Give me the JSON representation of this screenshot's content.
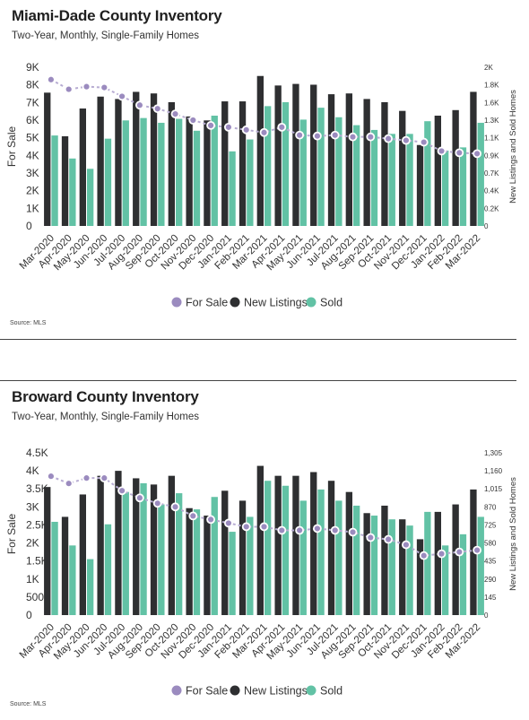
{
  "colors": {
    "for_sale": "#9b8bbf",
    "for_sale_line": "#b7acd2",
    "new_listings": "#2e2f31",
    "sold": "#62c2a5"
  },
  "chart_data": [
    {
      "type": "bar",
      "title": "Miami-Dade County Inventory",
      "subtitle": "Two-Year, Monthly, Single-Family Homes",
      "source": "Source:  MLS",
      "ylabel": "For Sale",
      "y2label": "New Listings and Sold Homes",
      "ylim": [
        0,
        9000
      ],
      "y2lim": [
        0,
        2000
      ],
      "yticks": [
        "0",
        "1K",
        "2K",
        "3K",
        "4K",
        "5K",
        "6K",
        "7K",
        "8K",
        "9K"
      ],
      "y2ticks": [
        "0",
        "0.2K",
        "0.4K",
        "0.7K",
        "0.9K",
        "1.1K",
        "1.3K",
        "1.6K",
        "1.8K",
        "2K"
      ],
      "categories": [
        "Mar-2020",
        "Apr-2020",
        "May-2020",
        "Jun-2020",
        "Jul-2020",
        "Aug-2020",
        "Sep-2020",
        "Oct-2020",
        "Nov-2020",
        "Dec-2020",
        "Jan-2021",
        "Feb-2021",
        "Mar-2021",
        "Apr-2021",
        "May-2021",
        "Jun-2021",
        "Jul-2021",
        "Aug-2021",
        "Sep-2021",
        "Oct-2021",
        "Nov-2021",
        "Dec-2021",
        "Jan-2022",
        "Feb-2022",
        "Mar-2022"
      ],
      "legend": [
        "For Sale",
        "New Listings",
        "Sold"
      ],
      "series": [
        {
          "name": "For Sale",
          "kind": "line",
          "axis": "left",
          "values": [
            8300,
            7750,
            7900,
            7850,
            7350,
            6850,
            6650,
            6350,
            6000,
            5700,
            5600,
            5450,
            5300,
            5600,
            5150,
            5100,
            5150,
            5050,
            5050,
            4950,
            4850,
            4750,
            4250,
            4150,
            4100
          ]
        },
        {
          "name": "New Listings",
          "kind": "bar",
          "axis": "right",
          "values": [
            1680,
            1130,
            1480,
            1630,
            1600,
            1690,
            1670,
            1560,
            1380,
            1330,
            1570,
            1570,
            1890,
            1770,
            1790,
            1780,
            1660,
            1670,
            1600,
            1560,
            1450,
            1020,
            1390,
            1460,
            1690
          ]
        },
        {
          "name": "Sold",
          "kind": "bar",
          "axis": "right",
          "values": [
            1140,
            850,
            720,
            1100,
            1330,
            1360,
            1300,
            1350,
            1200,
            1390,
            940,
            1090,
            1510,
            1560,
            1340,
            1490,
            1370,
            1270,
            1210,
            1160,
            1160,
            1320,
            950,
            990,
            1300
          ]
        }
      ]
    },
    {
      "type": "bar",
      "title": "Broward County Inventory",
      "subtitle": "Two-Year, Monthly, Single-Family Homes",
      "source": "Source:  MLS",
      "ylabel": "For Sale",
      "y2label": "New Listings and Sold Homes",
      "ylim": [
        0,
        4500
      ],
      "y2lim": [
        0,
        1305
      ],
      "yticks": [
        "0",
        "500",
        "1K",
        "1.5K",
        "2K",
        "2.5K",
        "3K",
        "3.5K",
        "4K",
        "4.5K"
      ],
      "y2ticks": [
        "0",
        "145",
        "290",
        "435",
        "580",
        "725",
        "870",
        "1,015",
        "1,160",
        "1,305"
      ],
      "categories": [
        "Mar-2020",
        "Apr-2020",
        "May-2020",
        "Jun-2020",
        "Jul-2020",
        "Aug-2020",
        "Sep-2020",
        "Oct-2020",
        "Nov-2020",
        "Dec-2020",
        "Jan-2021",
        "Feb-2021",
        "Mar-2021",
        "Apr-2021",
        "May-2021",
        "Jun-2021",
        "Jul-2021",
        "Aug-2021",
        "Sep-2021",
        "Oct-2021",
        "Nov-2021",
        "Dec-2021",
        "Jan-2022",
        "Feb-2022",
        "Mar-2022"
      ],
      "legend": [
        "For Sale",
        "New Listings",
        "Sold"
      ],
      "series": [
        {
          "name": "For Sale",
          "kind": "line",
          "axis": "left",
          "values": [
            3850,
            3650,
            3800,
            3800,
            3450,
            3250,
            3100,
            3000,
            2750,
            2650,
            2550,
            2450,
            2450,
            2350,
            2350,
            2400,
            2350,
            2300,
            2150,
            2100,
            1950,
            1650,
            1700,
            1750,
            1800
          ]
        },
        {
          "name": "New Listings",
          "kind": "bar",
          "axis": "right",
          "values": [
            1030,
            790,
            970,
            1120,
            1160,
            1100,
            1050,
            1120,
            860,
            800,
            1000,
            920,
            1200,
            1120,
            1120,
            1150,
            1080,
            990,
            820,
            880,
            770,
            610,
            830,
            890,
            1010
          ]
        },
        {
          "name": "Sold",
          "kind": "bar",
          "axis": "right",
          "values": [
            750,
            560,
            450,
            730,
            990,
            1060,
            890,
            980,
            850,
            950,
            670,
            790,
            1080,
            1040,
            920,
            1010,
            920,
            880,
            800,
            770,
            720,
            830,
            560,
            650,
            790
          ]
        }
      ]
    }
  ]
}
